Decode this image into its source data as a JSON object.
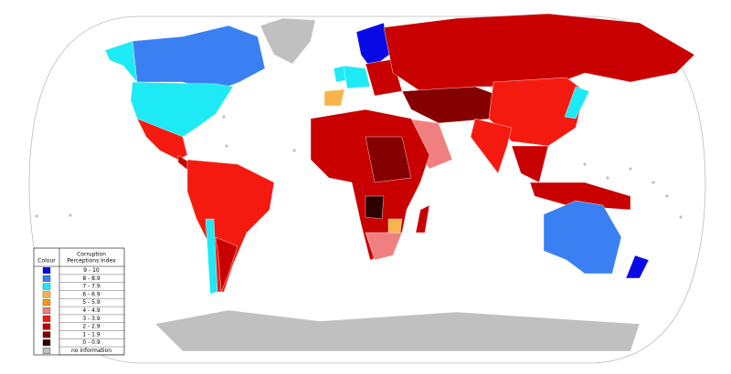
{
  "legend": {
    "colour_header": "Colour",
    "index_header": [
      "Corruption",
      "Perceptions Index"
    ],
    "entries": [
      {
        "label": "9 - 10",
        "color": "#0a0ae6"
      },
      {
        "label": "8 - 8.9",
        "color": "#3a80f2"
      },
      {
        "label": "7 - 7.9",
        "color": "#1eeaf5"
      },
      {
        "label": "6 - 6.9",
        "color": "#f8b44a"
      },
      {
        "label": "5 - 5.9",
        "color": "#ff9a10"
      },
      {
        "label": "4 - 4.9",
        "color": "#f08080"
      },
      {
        "label": "3 - 3.9",
        "color": "#f51a10"
      },
      {
        "label": "2 - 2.9",
        "color": "#c80000"
      },
      {
        "label": "1 - 1.9",
        "color": "#850000"
      },
      {
        "label": "0 - 0.9",
        "color": "#2e0000"
      },
      {
        "label": "no information",
        "color": "#c0c0c0"
      }
    ]
  }
}
